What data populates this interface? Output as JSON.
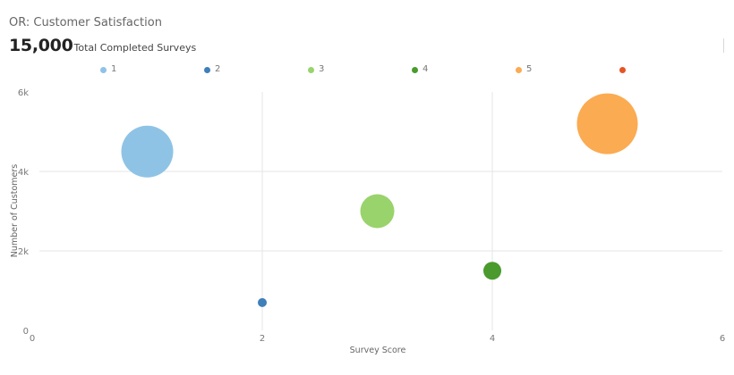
{
  "header": {
    "title": "OR: Customer Satisfaction",
    "kpi_value": "15,000",
    "kpi_label": "Total Completed Surveys"
  },
  "legend": [
    {
      "label": "1",
      "color": "#8fc3e6"
    },
    {
      "label": "2",
      "color": "#3f7fba"
    },
    {
      "label": "3",
      "color": "#99d36c"
    },
    {
      "label": "4",
      "color": "#4a9a2e"
    },
    {
      "label": "5",
      "color": "#fbab52"
    },
    {
      "label": "",
      "color": "#e65424"
    }
  ],
  "chart_data": {
    "type": "scatter",
    "subtype": "bubble",
    "title": "OR: Customer Satisfaction",
    "xlabel": "Survey Score",
    "ylabel": "Number of Customers",
    "xlim": [
      0,
      6
    ],
    "ylim": [
      0,
      6000
    ],
    "x_ticks": [
      "0",
      "2",
      "4",
      "6"
    ],
    "y_ticks": [
      "0",
      "2k",
      "4k",
      "6k"
    ],
    "grid": true,
    "legend_position": "top",
    "series": [
      {
        "name": "1",
        "color": "#8fc3e6",
        "x": 1,
        "y": 4500,
        "size": 29
      },
      {
        "name": "2",
        "color": "#3f7fba",
        "x": 2,
        "y": 700,
        "size": 5
      },
      {
        "name": "3",
        "color": "#99d36c",
        "x": 3,
        "y": 3000,
        "size": 19
      },
      {
        "name": "4",
        "color": "#4a9a2e",
        "x": 4,
        "y": 1500,
        "size": 10
      },
      {
        "name": "5",
        "color": "#fbab52",
        "x": 5,
        "y": 5200,
        "size": 34
      },
      {
        "name": "",
        "color": "#e65424",
        "x": null,
        "y": null,
        "size": 0
      }
    ]
  }
}
